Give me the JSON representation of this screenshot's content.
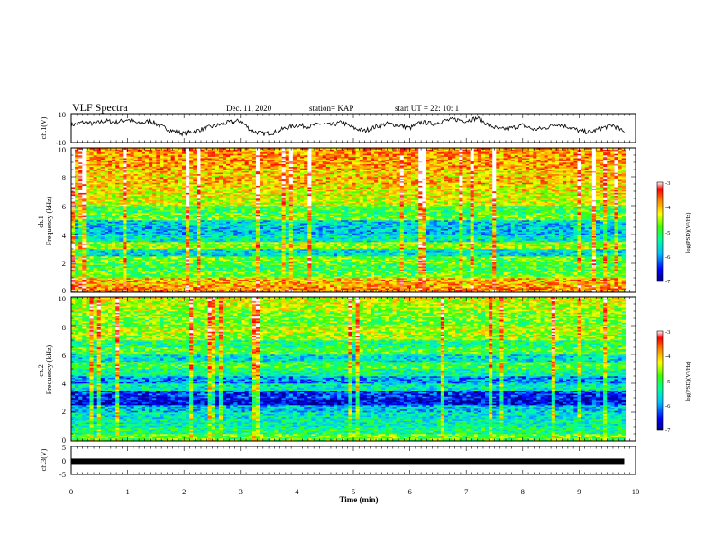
{
  "header": {
    "title": "VLF Spectra",
    "date": "Dec. 11, 2020",
    "station": "station= KAP",
    "start": "start  UT  =   22: 10: 1"
  },
  "chart_data": [
    {
      "type": "line",
      "panel": "ch1-waveform",
      "ylabel": "ch.1(V)",
      "ylim": [
        -10,
        10
      ],
      "yticks": [
        "10",
        "-10"
      ],
      "x": [
        0.0,
        0.2,
        0.4,
        0.6,
        0.8,
        1.0,
        1.2,
        1.4,
        1.6,
        1.8,
        2.0,
        2.2,
        2.4,
        2.6,
        2.8,
        3.0,
        3.2,
        3.4,
        3.6,
        3.8,
        4.0,
        4.2,
        4.4,
        4.6,
        4.8,
        5.0,
        5.2,
        5.4,
        5.6,
        5.8,
        6.0,
        6.2,
        6.4,
        6.6,
        6.8,
        7.0,
        7.2,
        7.4,
        7.6,
        7.8,
        8.0,
        8.2,
        8.4,
        8.6,
        8.8,
        9.0,
        9.2,
        9.4,
        9.6,
        9.8
      ],
      "values": [
        2,
        4,
        3,
        5,
        4,
        6,
        3,
        5,
        1,
        -2,
        -4,
        -2,
        0,
        2,
        4,
        5,
        -2,
        -4,
        -3,
        0,
        2,
        1,
        3,
        2,
        4,
        0,
        -2,
        1,
        3,
        2,
        0,
        4,
        3,
        5,
        6,
        5,
        7,
        2,
        -1,
        0,
        2,
        -1,
        0,
        3,
        1,
        -2,
        -3,
        0,
        2,
        -3
      ]
    },
    {
      "type": "heatmap",
      "panel": "ch1-spectrogram",
      "ylabel": "ch.1\nFrequency (kHz)",
      "ylim": [
        0,
        10
      ],
      "yticks": [
        "0",
        "2",
        "4",
        "6",
        "8",
        "10"
      ],
      "colorbar": {
        "range": [
          -7,
          -3
        ],
        "ticks": [
          "-3",
          "-4",
          "-5",
          "-6",
          "-7"
        ],
        "label": "log(PSD)(V²/Hz)"
      },
      "band_freq_khz": [
        0.25,
        0.75,
        1.25,
        1.75,
        2.25,
        2.75,
        3.25,
        3.75,
        4.25,
        4.75,
        5.25,
        5.75,
        6.25,
        6.75,
        7.25,
        7.75,
        8.25,
        8.75,
        9.25,
        9.75
      ],
      "band_level": [
        -3.8,
        -4.0,
        -4.8,
        -5.0,
        -4.8,
        -5.6,
        -4.6,
        -5.5,
        -5.8,
        -5.7,
        -4.8,
        -5.0,
        -4.4,
        -4.3,
        -4.2,
        -4.0,
        -4.1,
        -3.9,
        -3.9,
        -3.8
      ]
    },
    {
      "type": "heatmap",
      "panel": "ch2-spectrogram",
      "ylabel": "ch.2\nFrequency (kHz)",
      "ylim": [
        0,
        10
      ],
      "yticks": [
        "0",
        "2",
        "4",
        "6",
        "8",
        "10"
      ],
      "colorbar": {
        "range": [
          -7,
          -3
        ],
        "ticks": [
          "-3",
          "-4",
          "-5",
          "-6",
          "-7"
        ],
        "label": "log(PSD)(V²/Hz)"
      },
      "band_freq_khz": [
        0.25,
        0.75,
        1.25,
        1.75,
        2.25,
        2.75,
        3.25,
        3.75,
        4.25,
        4.75,
        5.25,
        5.75,
        6.25,
        6.75,
        7.25,
        7.75,
        8.25,
        8.75,
        9.25,
        9.75
      ],
      "band_level": [
        -4.8,
        -5.2,
        -5.4,
        -5.5,
        -5.8,
        -6.6,
        -6.4,
        -5.5,
        -6.0,
        -5.3,
        -5.0,
        -5.6,
        -4.9,
        -5.2,
        -4.6,
        -4.5,
        -4.8,
        -4.7,
        -4.5,
        -4.4
      ]
    },
    {
      "type": "line",
      "panel": "ch3-waveform",
      "ylabel": "ch.3(V)",
      "ylim": [
        -5,
        5
      ],
      "yticks": [
        "5",
        "0",
        "-5"
      ],
      "x": [
        0.0,
        9.8
      ],
      "values": [
        -0.3,
        -0.3
      ]
    }
  ],
  "xaxis": {
    "label": "Time  (min)",
    "range": [
      0,
      10
    ],
    "ticks": [
      "0",
      "1",
      "2",
      "3",
      "4",
      "5",
      "6",
      "7",
      "8",
      "9",
      "10"
    ]
  },
  "colors": {
    "line": "#000000",
    "colormap": [
      "#000080",
      "#0000ff",
      "#00a0ff",
      "#00ffff",
      "#00ff80",
      "#40ff00",
      "#c8ff00",
      "#ffff00",
      "#ff8000",
      "#ff0000",
      "#ffffff"
    ]
  }
}
